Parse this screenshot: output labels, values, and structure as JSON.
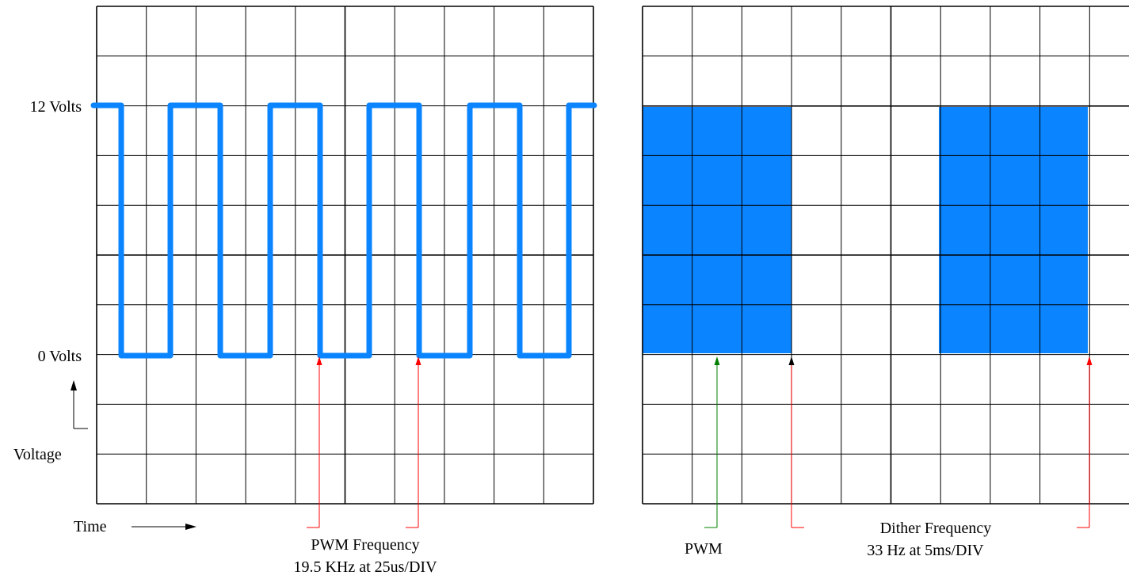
{
  "left_scope": {
    "y_labels": {
      "high": "12 Volts",
      "low": "0 Volts"
    },
    "axis_voltage_label": "Voltage",
    "axis_time_label": "Time",
    "caption_line1": "PWM Frequency",
    "caption_line2": "19.5 KHz at 25us/DIV",
    "waveform": {
      "high_level": "12 Volts",
      "low_level": "0 Volts",
      "time_per_div": "25us",
      "frequency": "19.5 KHz"
    }
  },
  "right_scope": {
    "pwm_label": "PWM",
    "caption_line1": "Dither Frequency",
    "caption_line2": "33 Hz at 5ms/DIV",
    "waveform": {
      "time_per_div": "5ms",
      "frequency": "33 Hz"
    }
  },
  "colors": {
    "trace": "#0a84ff",
    "grid": "#000000",
    "marker_red": "#ff0000",
    "marker_green": "#008000",
    "marker_black": "#000000"
  }
}
